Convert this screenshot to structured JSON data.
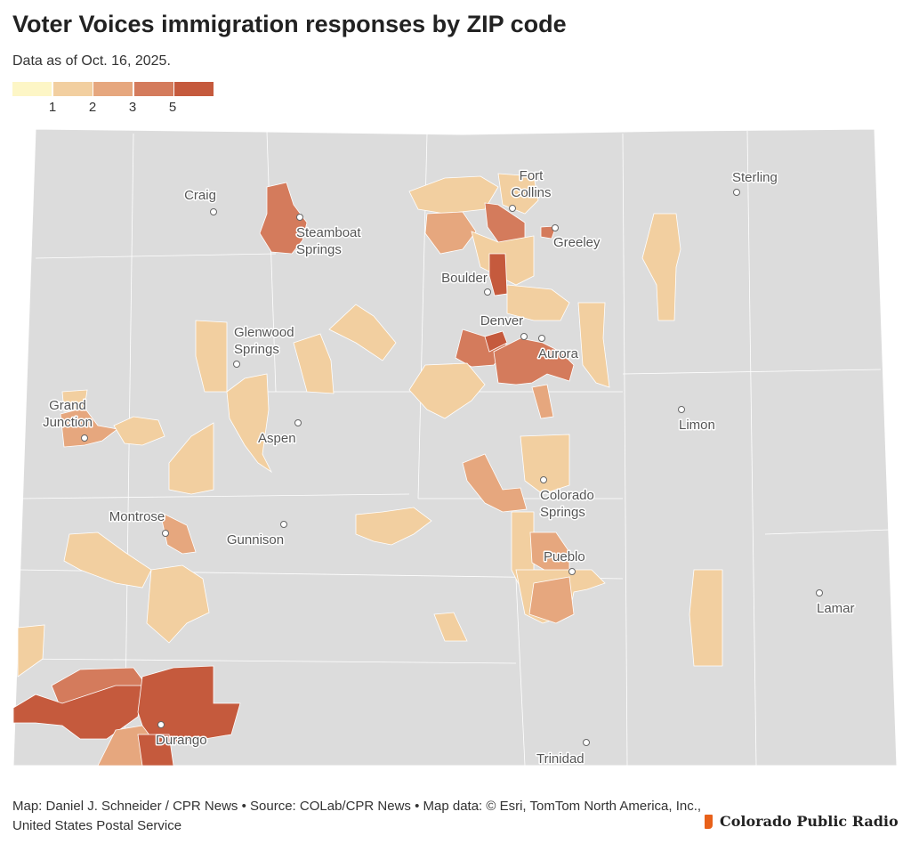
{
  "title": "Voter Voices immigration responses by ZIP code",
  "subtitle": "Data as of Oct. 16, 2025.",
  "legend": {
    "colors": [
      "#fdf6c6",
      "#f2cfa0",
      "#e6a77e",
      "#d47b5c",
      "#c55a3d"
    ],
    "ticks": [
      "1",
      "2",
      "3",
      "5"
    ]
  },
  "map": {
    "base_color": "#dcdcdc",
    "border_color": "#ffffff",
    "cities": [
      {
        "name": "Craig"
      },
      {
        "name": "Steamboat Springs",
        "lines": [
          "Steamboat",
          "Springs"
        ]
      },
      {
        "name": "Fort Collins",
        "lines": [
          "Fort",
          "Collins"
        ]
      },
      {
        "name": "Greeley"
      },
      {
        "name": "Sterling"
      },
      {
        "name": "Boulder"
      },
      {
        "name": "Denver"
      },
      {
        "name": "Aurora"
      },
      {
        "name": "Glenwood Springs",
        "lines": [
          "Glenwood",
          "Springs"
        ]
      },
      {
        "name": "Grand Junction",
        "lines": [
          "Grand",
          "Junction"
        ]
      },
      {
        "name": "Aspen"
      },
      {
        "name": "Limon"
      },
      {
        "name": "Montrose"
      },
      {
        "name": "Gunnison"
      },
      {
        "name": "Colorado Springs",
        "lines": [
          "Colorado",
          "Springs"
        ]
      },
      {
        "name": "Pueblo"
      },
      {
        "name": "Lamar"
      },
      {
        "name": "Durango"
      },
      {
        "name": "Trinidad"
      }
    ]
  },
  "footer": {
    "credits": "Map: Daniel J. Schneider / CPR News • Source: COLab/CPR News • Map data: © Esri, TomTom North America, Inc., United States Postal Service",
    "logo_text": "Colorado Public Radio",
    "logo_color": "#e8611a"
  }
}
